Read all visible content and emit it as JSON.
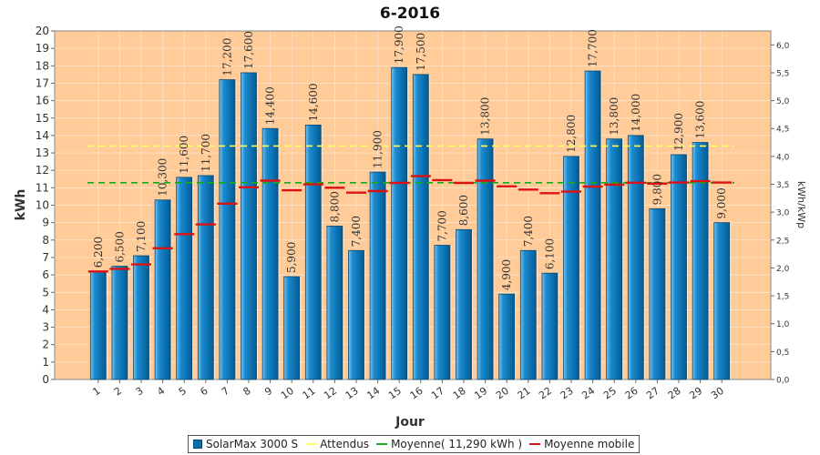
{
  "chart_data": {
    "type": "bar",
    "title": "6-2016",
    "xlabel": "Jour",
    "ylabel": "kWh",
    "y2label": "kWh/kWp",
    "ylim": [
      0,
      20
    ],
    "y2lim": [
      0,
      6.25
    ],
    "yticks": [
      "0",
      "1",
      "2",
      "3",
      "4",
      "5",
      "6",
      "7",
      "8",
      "9",
      "10",
      "11",
      "12",
      "13",
      "14",
      "15",
      "16",
      "17",
      "18",
      "19",
      "20"
    ],
    "y2ticks": [
      "0,0",
      "0,5",
      "1,0",
      "1,5",
      "2,0",
      "2,5",
      "3,0",
      "3,5",
      "4,0",
      "4,5",
      "5,0",
      "5,5",
      "6,0"
    ],
    "categories": [
      "1",
      "2",
      "3",
      "4",
      "5",
      "6",
      "7",
      "8",
      "9",
      "10",
      "11",
      "12",
      "13",
      "14",
      "15",
      "16",
      "17",
      "18",
      "19",
      "20",
      "21",
      "22",
      "23",
      "24",
      "25",
      "26",
      "27",
      "28",
      "29",
      "30"
    ],
    "series": [
      {
        "name": "SolarMax 3000 S",
        "kind": "bar",
        "color": "#0a6fae",
        "values": [
          6.2,
          6.5,
          7.1,
          10.3,
          11.6,
          11.7,
          17.2,
          17.6,
          14.4,
          5.9,
          14.6,
          8.8,
          7.4,
          11.9,
          17.9,
          17.5,
          7.7,
          8.6,
          13.8,
          4.9,
          7.4,
          6.1,
          12.8,
          17.7,
          13.8,
          14.0,
          9.8,
          12.9,
          13.6,
          9.0
        ],
        "labels": [
          "6,200",
          "6,500",
          "7,100",
          "10,300",
          "11,600",
          "11,700",
          "17,200",
          "17,600",
          "14,400",
          "5,900",
          "14,600",
          "8,800",
          "7,400",
          "11,900",
          "17,900",
          "17,500",
          "7,700",
          "8,600",
          "13,800",
          "4,900",
          "7,400",
          "6,100",
          "12,800",
          "17,700",
          "13,800",
          "14,000",
          "9,800",
          "12,900",
          "13,600",
          "9,000"
        ]
      },
      {
        "name": "Attendus",
        "kind": "dashed-line",
        "color": "#ffff66",
        "value": 13.4
      },
      {
        "name": "Moyenne( 11,290 kWh )",
        "kind": "dashed-line",
        "color": "#1aaa1a",
        "value": 11.29
      },
      {
        "name": "Moyenne mobile",
        "kind": "step-markers",
        "color": "#dd1111",
        "values": [
          6.2,
          6.35,
          6.6,
          7.53,
          8.34,
          8.9,
          10.09,
          11.03,
          11.41,
          10.86,
          11.2,
          11.0,
          10.72,
          10.81,
          11.28,
          11.67,
          11.44,
          11.28,
          11.41,
          11.08,
          10.9,
          10.69,
          10.78,
          11.07,
          11.18,
          11.29,
          11.24,
          11.3,
          11.38,
          11.3
        ]
      }
    ],
    "grid": true,
    "legend_position": "bottom"
  }
}
